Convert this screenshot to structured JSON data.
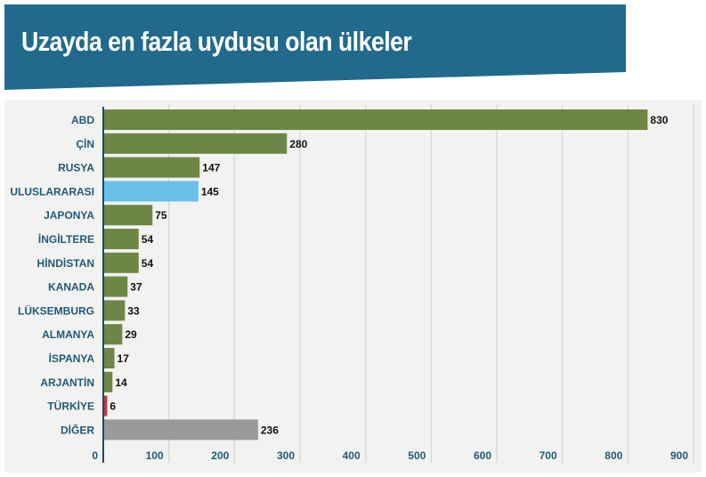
{
  "header": {
    "title": "Uzayda en fazla uydusu olan ülkeler",
    "background_color": "#216a8c"
  },
  "colors": {
    "default_bar": "#6d8646",
    "highlight_international": "#66c0e8",
    "highlight_turkey": "#c23b3f",
    "other": "#9a9a9a",
    "axis": "#1a4a64",
    "gridline": "#cfcfcf",
    "panel_background": "#f2f2f0"
  },
  "chart_data": {
    "type": "bar",
    "orientation": "horizontal",
    "title": "Uzayda en fazla uydusu olan ülkeler",
    "xlabel": "",
    "ylabel": "",
    "categories": [
      "ABD",
      "ÇİN",
      "RUSYA",
      "ULUSLARARASI",
      "JAPONYA",
      "İNGİLTERE",
      "HİNDİSTAN",
      "KANADA",
      "LÜKSEMBURG",
      "ALMANYA",
      "İSPANYA",
      "ARJANTİN",
      "TÜRKİYE",
      "DİĞER"
    ],
    "values": [
      830,
      280,
      147,
      145,
      75,
      54,
      54,
      37,
      33,
      29,
      17,
      14,
      6,
      236
    ],
    "bar_colors": [
      "#6d8646",
      "#6d8646",
      "#6d8646",
      "#66c0e8",
      "#6d8646",
      "#6d8646",
      "#6d8646",
      "#6d8646",
      "#6d8646",
      "#6d8646",
      "#6d8646",
      "#6d8646",
      "#c23b3f",
      "#9a9a9a"
    ],
    "xlim": [
      0,
      900
    ],
    "xticks": [
      0,
      100,
      200,
      300,
      400,
      500,
      600,
      700,
      800,
      900
    ],
    "grid": true,
    "legend": "none",
    "data_labels": true
  }
}
